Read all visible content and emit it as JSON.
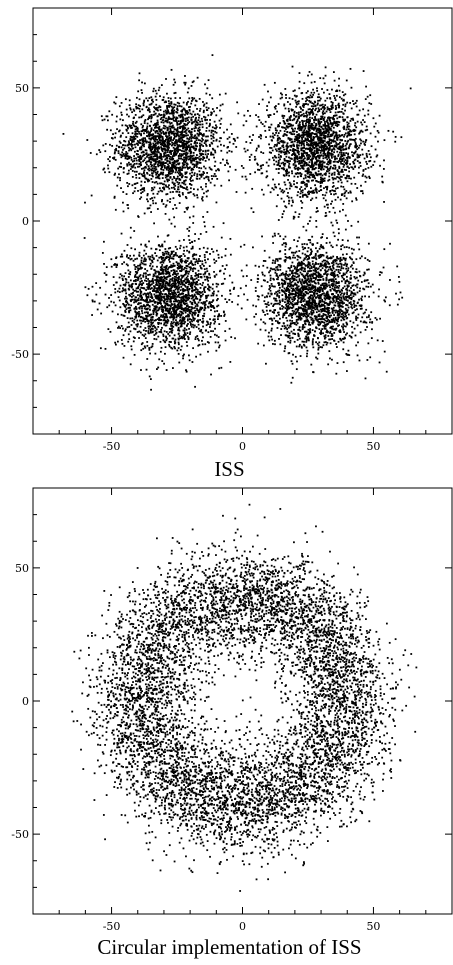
{
  "chart_data": [
    {
      "type": "scatter",
      "title": "",
      "caption": "ISS",
      "xlabel": "",
      "ylabel": "",
      "xlim": [
        -80,
        80
      ],
      "ylim": [
        -80,
        80
      ],
      "xticks": [
        -50,
        0,
        50
      ],
      "yticks": [
        -50,
        0,
        50
      ],
      "grid": false,
      "marker_color": "#000000",
      "series": [
        {
          "distribution": "gaussian_cluster",
          "center": [
            -28,
            28
          ],
          "spread": 10,
          "count": 2000
        },
        {
          "distribution": "gaussian_cluster",
          "center": [
            28,
            28
          ],
          "spread": 10,
          "count": 2000
        },
        {
          "distribution": "gaussian_cluster",
          "center": [
            -28,
            -28
          ],
          "spread": 10,
          "count": 2000
        },
        {
          "distribution": "gaussian_cluster",
          "center": [
            28,
            -28
          ],
          "spread": 10,
          "count": 2000
        }
      ]
    },
    {
      "type": "scatter",
      "title": "",
      "caption": "Circular implementation of ISS",
      "xlabel": "",
      "ylabel": "",
      "xlim": [
        -80,
        80
      ],
      "ylim": [
        -80,
        80
      ],
      "xticks": [
        -50,
        0,
        50
      ],
      "yticks": [
        -50,
        0,
        50
      ],
      "grid": false,
      "marker_color": "#000000",
      "series": [
        {
          "distribution": "ring",
          "center": [
            0,
            0
          ],
          "radius": 40,
          "spread": 10,
          "count": 7000
        }
      ]
    }
  ]
}
